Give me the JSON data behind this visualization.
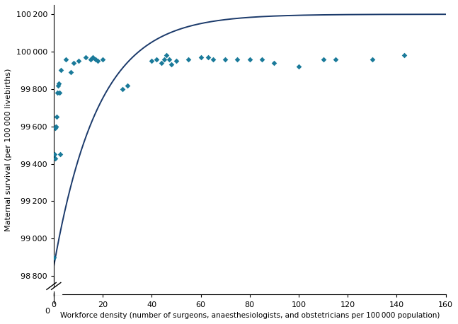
{
  "scatter_x": [
    0.1,
    0.3,
    0.5,
    0.6,
    0.8,
    1.0,
    1.2,
    1.5,
    1.8,
    2.0,
    2.2,
    2.5,
    3.0,
    5.0,
    7.0,
    8.0,
    10.0,
    13.0,
    15.0,
    16.0,
    17.0,
    18.0,
    20.0,
    28.0,
    30.0,
    40.0,
    42.0,
    44.0,
    45.0,
    46.0,
    47.0,
    48.0,
    50.0,
    55.0,
    60.0,
    63.0,
    65.0,
    70.0,
    75.0,
    80.0,
    85.0,
    90.0,
    100.0,
    110.0,
    115.0,
    130.0,
    143.0
  ],
  "scatter_y": [
    98900,
    99450,
    99430,
    99590,
    99600,
    99600,
    99650,
    99780,
    99820,
    99830,
    99780,
    99450,
    99900,
    99960,
    99890,
    99940,
    99950,
    99970,
    99960,
    99970,
    99960,
    99950,
    99960,
    99800,
    99820,
    99950,
    99960,
    99940,
    99960,
    99980,
    99960,
    99930,
    99950,
    99960,
    99970,
    99970,
    99960,
    99960,
    99960,
    99960,
    99960,
    99940,
    99920,
    99960,
    99960,
    99960,
    99980
  ],
  "curve_color": "#1b3a6b",
  "scatter_color": "#1a7a9a",
  "xlabel": "Workforce density (number of surgeons, anaesthesiologists, and obstetricians per 100 000 population)",
  "ylabel": "Maternal survival (per 100 000 livebirths)",
  "ytick_vals": [
    98800,
    99000,
    99200,
    99400,
    99600,
    99800,
    100000,
    100200
  ],
  "ytick_labels": [
    "98 800",
    "99 000",
    "99 200",
    "99 400",
    "99 600",
    "99 800",
    "100 000",
    "100 200"
  ],
  "xticks": [
    0,
    20,
    40,
    60,
    80,
    100,
    120,
    140,
    160
  ],
  "xlim": [
    0,
    160
  ],
  "ylim": [
    98700,
    100250
  ],
  "curve_a": 100200,
  "curve_b": 1350,
  "curve_c": 0.055
}
